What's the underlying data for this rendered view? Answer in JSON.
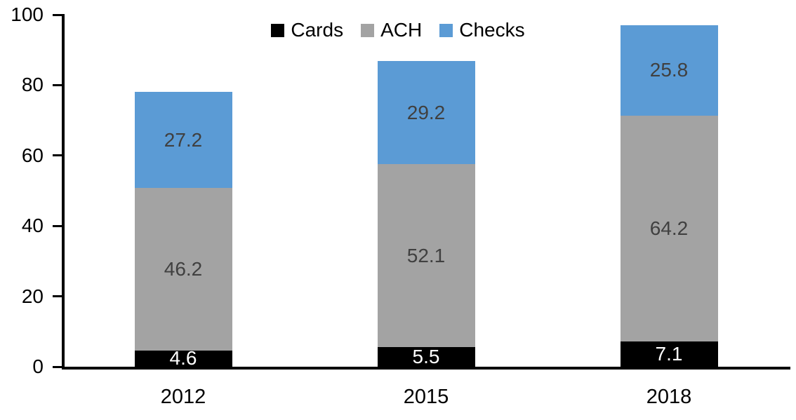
{
  "chart_data": {
    "type": "bar",
    "stacked": true,
    "title": "",
    "xlabel": "",
    "ylabel": "",
    "categories": [
      "2012",
      "2015",
      "2018"
    ],
    "series": [
      {
        "name": "Cards",
        "color": "#000000",
        "label_color": "#ffffff",
        "values": [
          4.6,
          5.5,
          7.1
        ]
      },
      {
        "name": "ACH",
        "color": "#A3A3A3",
        "label_color": "#404040",
        "values": [
          46.2,
          52.1,
          64.2
        ]
      },
      {
        "name": "Checks",
        "color": "#5B9BD5",
        "label_color": "#404040",
        "values": [
          27.2,
          29.2,
          25.8
        ]
      }
    ],
    "yticks": [
      0,
      20,
      40,
      60,
      80,
      100
    ],
    "ylim": [
      0,
      100
    ],
    "grid": false,
    "legend_position": "top",
    "axis_color": "#000000"
  }
}
